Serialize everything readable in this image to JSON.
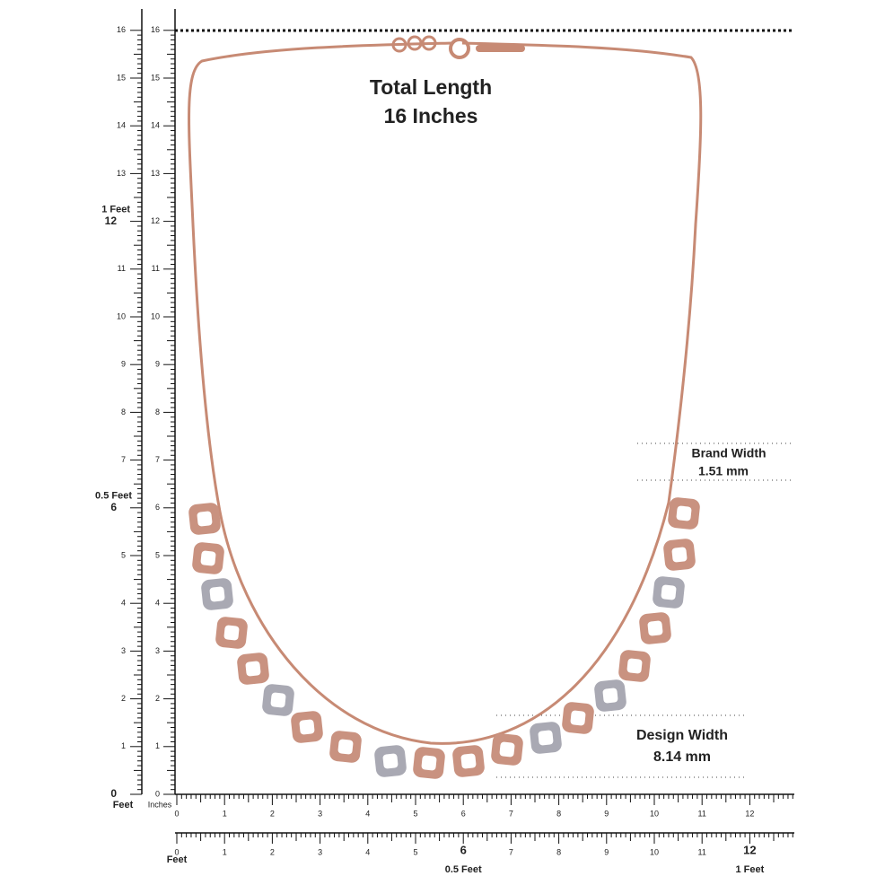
{
  "header": {
    "title": "Total Length",
    "subtitle": "16 Inches"
  },
  "left_ruler": {
    "feet_scale": {
      "labels": [
        "0",
        "1",
        "2",
        "3",
        "4",
        "5",
        "6",
        "7",
        "8",
        "9",
        "10",
        "11",
        "12",
        "13",
        "14",
        "15",
        "16"
      ],
      "unit": "Feet",
      "half": "0.5 Feet",
      "full": "1 Feet"
    },
    "inch_scale": {
      "labels": [
        "0",
        "1",
        "2",
        "3",
        "4",
        "5",
        "6",
        "7",
        "8",
        "9",
        "10",
        "11",
        "12",
        "13",
        "14",
        "15",
        "16"
      ],
      "unit": "Inches"
    }
  },
  "bottom_ruler": {
    "inch_scale": {
      "labels": [
        "0",
        "1",
        "2",
        "3",
        "4",
        "5",
        "6",
        "7",
        "8",
        "9",
        "10",
        "11",
        "12"
      ]
    },
    "feet_scale": {
      "labels": [
        "0",
        "1",
        "2",
        "3",
        "4",
        "5",
        "6",
        "7",
        "8",
        "9",
        "10",
        "11",
        "12"
      ],
      "unit": "Feet",
      "half": "0.5 Feet",
      "full": "1 Feet"
    }
  },
  "annotations": {
    "brand_width": {
      "label": "Brand Width",
      "value": "1.51 mm"
    },
    "design_width": {
      "label": "Design Width",
      "value": "8.14  mm"
    }
  }
}
